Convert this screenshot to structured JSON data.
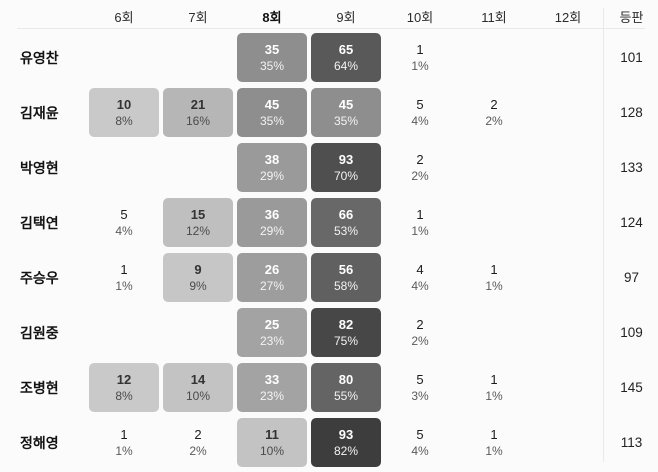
{
  "ui": {
    "colors": {
      "background": "#fbfbfb",
      "divider": "#e9e9e9",
      "cell_text_light": "#ffffff",
      "cell_text_dark": "#333333"
    }
  },
  "chart_data": {
    "type": "heatmap",
    "title": "",
    "columns": [
      "6회",
      "7회",
      "8회",
      "9회",
      "10회",
      "11회",
      "12회"
    ],
    "emphasized_column": "8회",
    "appearances_label": "등판",
    "legend": "none",
    "shading": "darker gray = higher percentage; cells under ~8% have no background",
    "rows": [
      {
        "name": "유영찬",
        "appearances": "101",
        "cells": [
          null,
          null,
          {
            "count": "35",
            "pct": "35%",
            "bg": "#8e8e8e",
            "mode": "light"
          },
          {
            "count": "65",
            "pct": "64%",
            "bg": "#595959",
            "mode": "light"
          },
          {
            "count": "1",
            "pct": "1%",
            "bg": null,
            "mode": "plain"
          },
          null,
          null
        ]
      },
      {
        "name": "김재윤",
        "appearances": "128",
        "cells": [
          {
            "count": "10",
            "pct": "8%",
            "bg": "#c9c9c9",
            "mode": "dark"
          },
          {
            "count": "21",
            "pct": "16%",
            "bg": "#b6b6b6",
            "mode": "dark"
          },
          {
            "count": "45",
            "pct": "35%",
            "bg": "#8e8e8e",
            "mode": "light"
          },
          {
            "count": "45",
            "pct": "35%",
            "bg": "#8e8e8e",
            "mode": "light"
          },
          {
            "count": "5",
            "pct": "4%",
            "bg": null,
            "mode": "plain"
          },
          {
            "count": "2",
            "pct": "2%",
            "bg": null,
            "mode": "plain"
          },
          null
        ]
      },
      {
        "name": "박영현",
        "appearances": "133",
        "cells": [
          null,
          null,
          {
            "count": "38",
            "pct": "29%",
            "bg": "#9a9a9a",
            "mode": "light"
          },
          {
            "count": "93",
            "pct": "70%",
            "bg": "#4f4f4f",
            "mode": "light"
          },
          {
            "count": "2",
            "pct": "2%",
            "bg": null,
            "mode": "plain"
          },
          null,
          null
        ]
      },
      {
        "name": "김택연",
        "appearances": "124",
        "cells": [
          {
            "count": "5",
            "pct": "4%",
            "bg": null,
            "mode": "plain"
          },
          {
            "count": "15",
            "pct": "12%",
            "bg": "#bfbfbf",
            "mode": "dark"
          },
          {
            "count": "36",
            "pct": "29%",
            "bg": "#9a9a9a",
            "mode": "light"
          },
          {
            "count": "66",
            "pct": "53%",
            "bg": "#686868",
            "mode": "light"
          },
          {
            "count": "1",
            "pct": "1%",
            "bg": null,
            "mode": "plain"
          },
          null,
          null
        ]
      },
      {
        "name": "주승우",
        "appearances": "97",
        "cells": [
          {
            "count": "1",
            "pct": "1%",
            "bg": null,
            "mode": "plain"
          },
          {
            "count": "9",
            "pct": "9%",
            "bg": "#c6c6c6",
            "mode": "dark"
          },
          {
            "count": "26",
            "pct": "27%",
            "bg": "#9d9d9d",
            "mode": "light"
          },
          {
            "count": "56",
            "pct": "58%",
            "bg": "#606060",
            "mode": "light"
          },
          {
            "count": "4",
            "pct": "4%",
            "bg": null,
            "mode": "plain"
          },
          {
            "count": "1",
            "pct": "1%",
            "bg": null,
            "mode": "plain"
          },
          null
        ]
      },
      {
        "name": "김원중",
        "appearances": "109",
        "cells": [
          null,
          null,
          {
            "count": "25",
            "pct": "23%",
            "bg": "#a3a3a3",
            "mode": "light"
          },
          {
            "count": "82",
            "pct": "75%",
            "bg": "#474747",
            "mode": "light"
          },
          {
            "count": "2",
            "pct": "2%",
            "bg": null,
            "mode": "plain"
          },
          null,
          null
        ]
      },
      {
        "name": "조병현",
        "appearances": "145",
        "cells": [
          {
            "count": "12",
            "pct": "8%",
            "bg": "#c9c9c9",
            "mode": "dark"
          },
          {
            "count": "14",
            "pct": "10%",
            "bg": "#c3c3c3",
            "mode": "dark"
          },
          {
            "count": "33",
            "pct": "23%",
            "bg": "#a3a3a3",
            "mode": "light"
          },
          {
            "count": "80",
            "pct": "55%",
            "bg": "#646464",
            "mode": "light"
          },
          {
            "count": "5",
            "pct": "3%",
            "bg": null,
            "mode": "plain"
          },
          {
            "count": "1",
            "pct": "1%",
            "bg": null,
            "mode": "plain"
          },
          null
        ]
      },
      {
        "name": "정해영",
        "appearances": "113",
        "cells": [
          {
            "count": "1",
            "pct": "1%",
            "bg": null,
            "mode": "plain"
          },
          {
            "count": "2",
            "pct": "2%",
            "bg": null,
            "mode": "plain"
          },
          {
            "count": "11",
            "pct": "10%",
            "bg": "#c3c3c3",
            "mode": "dark"
          },
          {
            "count": "93",
            "pct": "82%",
            "bg": "#3d3d3d",
            "mode": "light"
          },
          {
            "count": "5",
            "pct": "4%",
            "bg": null,
            "mode": "plain"
          },
          {
            "count": "1",
            "pct": "1%",
            "bg": null,
            "mode": "plain"
          },
          null
        ]
      }
    ]
  }
}
